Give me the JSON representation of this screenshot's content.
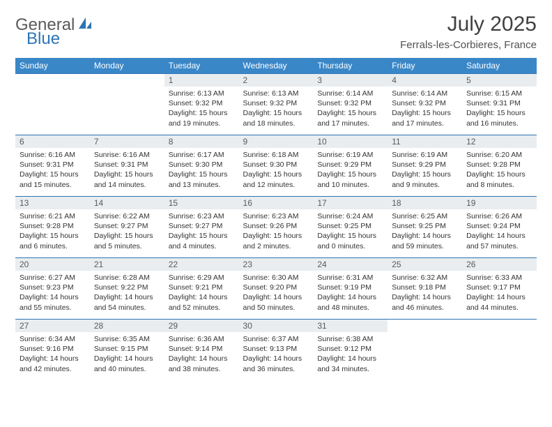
{
  "brand": {
    "part1": "General",
    "part2": "Blue"
  },
  "title": "July 2025",
  "location": "Ferrals-les-Corbieres, France",
  "colors": {
    "header_bg": "#3a87c8",
    "header_text": "#ffffff",
    "daynum_bg": "#e9edf0",
    "row_divider": "#2d74b5",
    "brand_accent": "#2d74b5",
    "text": "#333333",
    "background": "#ffffff"
  },
  "calendar": {
    "type": "table",
    "columns": [
      "Sunday",
      "Monday",
      "Tuesday",
      "Wednesday",
      "Thursday",
      "Friday",
      "Saturday"
    ],
    "col_count": 7,
    "first_weekday_index": 2,
    "days": [
      {
        "n": 1,
        "sunrise": "6:13 AM",
        "sunset": "9:32 PM",
        "daylight": "15 hours and 19 minutes."
      },
      {
        "n": 2,
        "sunrise": "6:13 AM",
        "sunset": "9:32 PM",
        "daylight": "15 hours and 18 minutes."
      },
      {
        "n": 3,
        "sunrise": "6:14 AM",
        "sunset": "9:32 PM",
        "daylight": "15 hours and 17 minutes."
      },
      {
        "n": 4,
        "sunrise": "6:14 AM",
        "sunset": "9:32 PM",
        "daylight": "15 hours and 17 minutes."
      },
      {
        "n": 5,
        "sunrise": "6:15 AM",
        "sunset": "9:31 PM",
        "daylight": "15 hours and 16 minutes."
      },
      {
        "n": 6,
        "sunrise": "6:16 AM",
        "sunset": "9:31 PM",
        "daylight": "15 hours and 15 minutes."
      },
      {
        "n": 7,
        "sunrise": "6:16 AM",
        "sunset": "9:31 PM",
        "daylight": "15 hours and 14 minutes."
      },
      {
        "n": 8,
        "sunrise": "6:17 AM",
        "sunset": "9:30 PM",
        "daylight": "15 hours and 13 minutes."
      },
      {
        "n": 9,
        "sunrise": "6:18 AM",
        "sunset": "9:30 PM",
        "daylight": "15 hours and 12 minutes."
      },
      {
        "n": 10,
        "sunrise": "6:19 AM",
        "sunset": "9:29 PM",
        "daylight": "15 hours and 10 minutes."
      },
      {
        "n": 11,
        "sunrise": "6:19 AM",
        "sunset": "9:29 PM",
        "daylight": "15 hours and 9 minutes."
      },
      {
        "n": 12,
        "sunrise": "6:20 AM",
        "sunset": "9:28 PM",
        "daylight": "15 hours and 8 minutes."
      },
      {
        "n": 13,
        "sunrise": "6:21 AM",
        "sunset": "9:28 PM",
        "daylight": "15 hours and 6 minutes."
      },
      {
        "n": 14,
        "sunrise": "6:22 AM",
        "sunset": "9:27 PM",
        "daylight": "15 hours and 5 minutes."
      },
      {
        "n": 15,
        "sunrise": "6:23 AM",
        "sunset": "9:27 PM",
        "daylight": "15 hours and 4 minutes."
      },
      {
        "n": 16,
        "sunrise": "6:23 AM",
        "sunset": "9:26 PM",
        "daylight": "15 hours and 2 minutes."
      },
      {
        "n": 17,
        "sunrise": "6:24 AM",
        "sunset": "9:25 PM",
        "daylight": "15 hours and 0 minutes."
      },
      {
        "n": 18,
        "sunrise": "6:25 AM",
        "sunset": "9:25 PM",
        "daylight": "14 hours and 59 minutes."
      },
      {
        "n": 19,
        "sunrise": "6:26 AM",
        "sunset": "9:24 PM",
        "daylight": "14 hours and 57 minutes."
      },
      {
        "n": 20,
        "sunrise": "6:27 AM",
        "sunset": "9:23 PM",
        "daylight": "14 hours and 55 minutes."
      },
      {
        "n": 21,
        "sunrise": "6:28 AM",
        "sunset": "9:22 PM",
        "daylight": "14 hours and 54 minutes."
      },
      {
        "n": 22,
        "sunrise": "6:29 AM",
        "sunset": "9:21 PM",
        "daylight": "14 hours and 52 minutes."
      },
      {
        "n": 23,
        "sunrise": "6:30 AM",
        "sunset": "9:20 PM",
        "daylight": "14 hours and 50 minutes."
      },
      {
        "n": 24,
        "sunrise": "6:31 AM",
        "sunset": "9:19 PM",
        "daylight": "14 hours and 48 minutes."
      },
      {
        "n": 25,
        "sunrise": "6:32 AM",
        "sunset": "9:18 PM",
        "daylight": "14 hours and 46 minutes."
      },
      {
        "n": 26,
        "sunrise": "6:33 AM",
        "sunset": "9:17 PM",
        "daylight": "14 hours and 44 minutes."
      },
      {
        "n": 27,
        "sunrise": "6:34 AM",
        "sunset": "9:16 PM",
        "daylight": "14 hours and 42 minutes."
      },
      {
        "n": 28,
        "sunrise": "6:35 AM",
        "sunset": "9:15 PM",
        "daylight": "14 hours and 40 minutes."
      },
      {
        "n": 29,
        "sunrise": "6:36 AM",
        "sunset": "9:14 PM",
        "daylight": "14 hours and 38 minutes."
      },
      {
        "n": 30,
        "sunrise": "6:37 AM",
        "sunset": "9:13 PM",
        "daylight": "14 hours and 36 minutes."
      },
      {
        "n": 31,
        "sunrise": "6:38 AM",
        "sunset": "9:12 PM",
        "daylight": "14 hours and 34 minutes."
      }
    ],
    "labels": {
      "sunrise_prefix": "Sunrise: ",
      "sunset_prefix": "Sunset: ",
      "daylight_prefix": "Daylight: "
    },
    "cell_font_size_pt": 8,
    "header_font_size_pt": 9,
    "title_font_size_pt": 22,
    "location_font_size_pt": 11
  }
}
